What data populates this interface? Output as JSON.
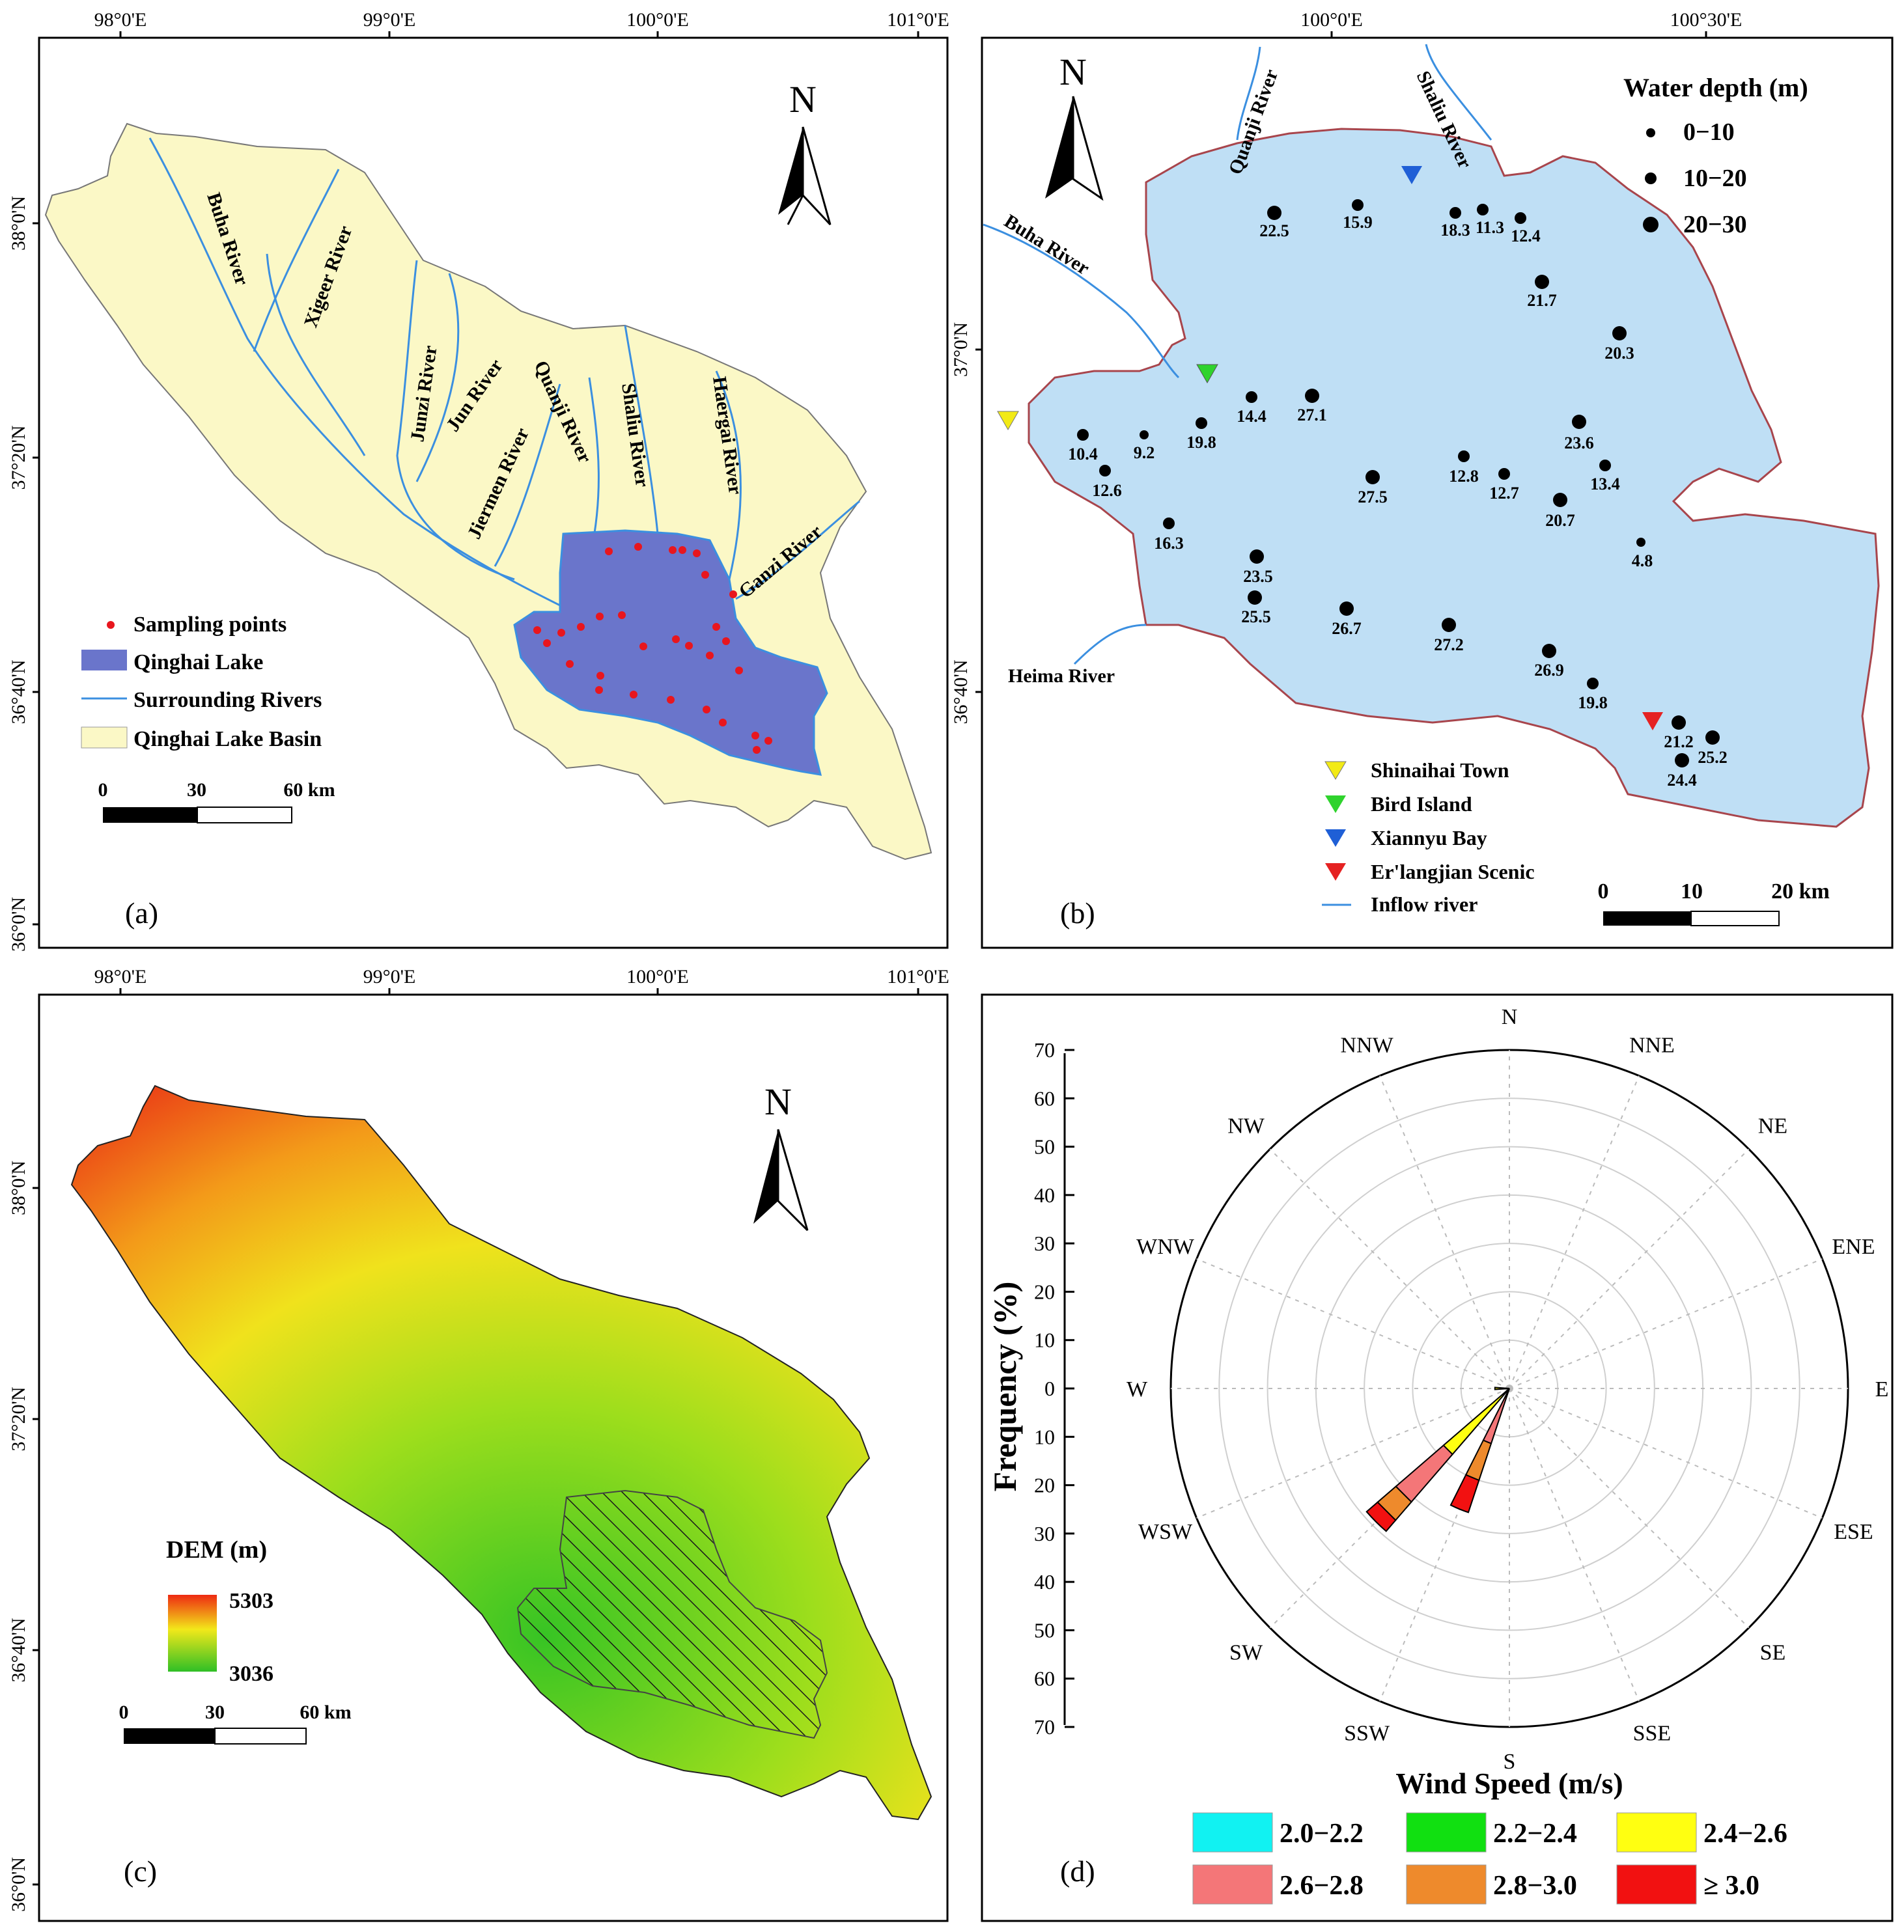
{
  "panel_a": {
    "label": "(a)",
    "lon_ticks": [
      "98°0'E",
      "99°0'E",
      "100°0'E",
      "101°0'E"
    ],
    "lat_ticks": [
      "38°0'N",
      "37°20'N",
      "36°40'N",
      "36°0'N"
    ],
    "north": "N",
    "rivers": [
      "Buha River",
      "Xigeer River",
      "Junzi River",
      "Jun River",
      "Quanji River",
      "Jiermen River",
      "Shaliu River",
      "Haergai River",
      "Ganzi River"
    ],
    "legend": [
      "Sampling points",
      "Qinghai Lake",
      "Surrounding Rivers",
      "Qinghai Lake Basin"
    ],
    "scale": [
      "0",
      "30",
      "60 km"
    ],
    "colors": {
      "basin": "#fbf8c6",
      "lake": "#6a75cb",
      "river": "#3b8fe0",
      "point": "#e8161e"
    }
  },
  "panel_b": {
    "label": "(b)",
    "lon_ticks": [
      "100°0'E",
      "100°30'E"
    ],
    "lat_ticks": [
      "37°0'N",
      "36°40'N"
    ],
    "north": "N",
    "legend_title": "Water depth (m)",
    "depth_classes": [
      "0−10",
      "10−20",
      "20−30"
    ],
    "rivers": [
      "Quanji River",
      "Shaliu River",
      "Buha River",
      "Heima River"
    ],
    "depths": [
      "22.5",
      "15.9",
      "18.3",
      "11.3",
      "12.4",
      "21.7",
      "20.3",
      "10.4",
      "9.2",
      "19.8",
      "14.4",
      "27.1",
      "23.6",
      "12.6",
      "27.5",
      "12.8",
      "12.7",
      "13.4",
      "20.7",
      "16.3",
      "4.8",
      "23.5",
      "25.5",
      "26.7",
      "27.2",
      "26.9",
      "19.8",
      "21.2",
      "25.2",
      "24.4"
    ],
    "sites": [
      {
        "name": "Shinaihai Town",
        "color": "#f2ea16"
      },
      {
        "name": "Bird Island",
        "color": "#2fd32d"
      },
      {
        "name": "Xiannyu Bay",
        "color": "#1f5fd6"
      },
      {
        "name": "Er'langjian Scenic",
        "color": "#e52222"
      }
    ],
    "inflow": "Inflow river",
    "scale": [
      "0",
      "10",
      "20 km"
    ],
    "colors": {
      "lake": "#bfdff5",
      "shore": "#a8454c"
    }
  },
  "panel_c": {
    "label": "(c)",
    "lon_ticks": [
      "98°0'E",
      "99°0'E",
      "100°0'E",
      "101°0'E"
    ],
    "lat_ticks": [
      "38°0'N",
      "37°20'N",
      "36°40'N",
      "36°0'N"
    ],
    "north": "N",
    "legend_title": "DEM (m)",
    "dem_max": "5303",
    "dem_min": "3036",
    "scale": [
      "0",
      "30",
      "60 km"
    ]
  },
  "panel_d": {
    "label": "(d)",
    "axis_title": "Frequency (%)",
    "xlabel": "Wind Speed (m/s)",
    "r_ticks": [
      "70",
      "60",
      "50",
      "40",
      "30",
      "20",
      "10",
      "0",
      "10",
      "20",
      "30",
      "40",
      "50",
      "60",
      "70"
    ],
    "directions": [
      "N",
      "NNE",
      "NE",
      "ENE",
      "E",
      "ESE",
      "SE",
      "SSE",
      "S",
      "SSW",
      "SW",
      "WSW",
      "W",
      "WNW",
      "NW",
      "NNW"
    ],
    "legend": [
      {
        "label": "2.0−2.2",
        "color": "#11f2f2"
      },
      {
        "label": "2.2−2.4",
        "color": "#11e011"
      },
      {
        "label": "2.4−2.6",
        "color": "#ffff11"
      },
      {
        "label": "2.6−2.8",
        "color": "#f47678"
      },
      {
        "label": "2.8−3.0",
        "color": "#ee8a2c"
      },
      {
        "label": "≥ 3.0",
        "color": "#f21111"
      }
    ]
  },
  "chart_data": {
    "type": "windrose",
    "title": "",
    "xlabel": "Wind Speed (m/s)",
    "ylabel": "Frequency (%)",
    "rlim": [
      0,
      70
    ],
    "directions": [
      "N",
      "NNE",
      "NE",
      "ENE",
      "E",
      "ESE",
      "SE",
      "SSE",
      "S",
      "SSW",
      "SW",
      "WSW",
      "W",
      "WNW",
      "NW",
      "NNW"
    ],
    "series": [
      {
        "name": "2.0−2.2",
        "values": [
          0,
          0,
          0,
          0,
          0,
          0,
          0,
          0,
          0,
          0,
          0,
          0,
          0,
          0,
          0,
          0
        ]
      },
      {
        "name": "2.2−2.4",
        "values": [
          0,
          0,
          0,
          0,
          0,
          0,
          0,
          0,
          0,
          0,
          0,
          0,
          0,
          0,
          0,
          0
        ]
      },
      {
        "name": "2.4−2.6",
        "values": [
          0,
          0,
          0,
          0,
          0,
          0,
          0,
          0,
          0,
          0,
          18,
          0,
          3,
          0,
          0,
          0
        ]
      },
      {
        "name": "2.6−2.8",
        "values": [
          0,
          0,
          0,
          0,
          0,
          0,
          0,
          0,
          0,
          12,
          13,
          0,
          0,
          0,
          0,
          0
        ]
      },
      {
        "name": "2.8−3.0",
        "values": [
          0,
          0,
          0,
          0,
          0,
          0,
          0,
          0,
          0,
          8,
          5,
          0,
          0,
          0,
          0,
          0
        ]
      },
      {
        "name": "≥ 3.0",
        "values": [
          0,
          0,
          0,
          0,
          0,
          0,
          0,
          0,
          0,
          7,
          3,
          0,
          0,
          0,
          0,
          0
        ]
      }
    ]
  }
}
